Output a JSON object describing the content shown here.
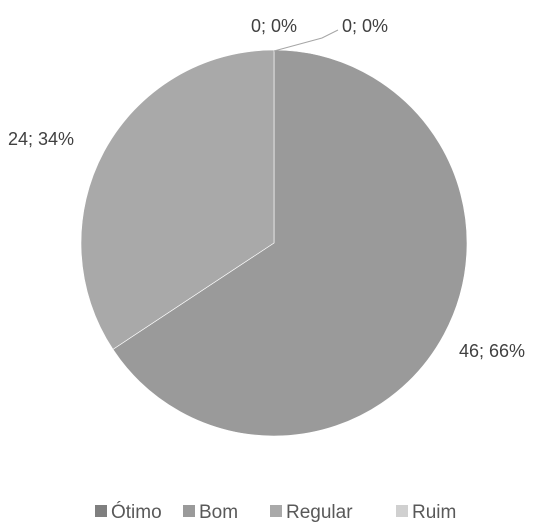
{
  "chart_data": {
    "type": "pie",
    "categories": [
      "Ótimo",
      "Bom",
      "Regular",
      "Ruim"
    ],
    "values": [
      0,
      46,
      24,
      0
    ],
    "percentages": [
      0,
      66,
      34,
      0
    ],
    "data_labels": [
      "0; 0%",
      "46; 66%",
      "24; 34%",
      "0; 0%"
    ],
    "colors": [
      "#7f7f7f",
      "#9a9a9a",
      "#a9a9a9",
      "#d0d0d0"
    ],
    "legend_position": "bottom",
    "title": ""
  }
}
